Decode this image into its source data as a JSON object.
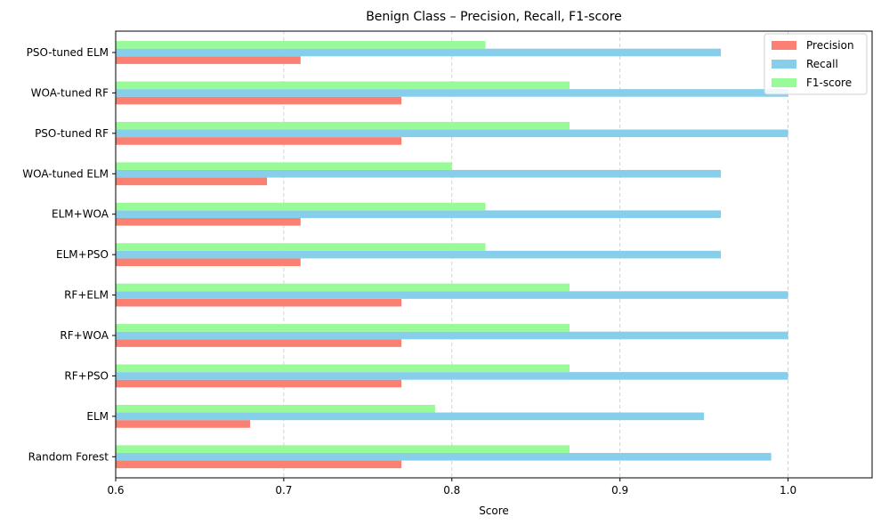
{
  "chart_data": {
    "type": "bar",
    "orientation": "horizontal",
    "title": "Benign Class – Precision, Recall, F1-score",
    "xlabel": "Score",
    "ylabel": "",
    "xlim": [
      0.6,
      1.05
    ],
    "xticks": [
      "0.6",
      "0.7",
      "0.8",
      "0.9",
      "1.0"
    ],
    "grid": "x-dashed",
    "legend_position": "top-right",
    "categories": [
      "Random Forest",
      "ELM",
      "RF+PSO",
      "RF+WOA",
      "RF+ELM",
      "ELM+PSO",
      "ELM+WOA",
      "WOA-tuned ELM",
      "PSO-tuned RF",
      "WOA-tuned RF",
      "PSO-tuned ELM"
    ],
    "series": [
      {
        "name": "Precision",
        "color": "#fa8072",
        "values": [
          0.77,
          0.68,
          0.77,
          0.77,
          0.77,
          0.71,
          0.71,
          0.69,
          0.77,
          0.77,
          0.71
        ]
      },
      {
        "name": "Recall",
        "color": "#87ceeb",
        "values": [
          0.99,
          0.95,
          1.0,
          1.0,
          1.0,
          0.96,
          0.96,
          0.96,
          1.0,
          1.0,
          0.96
        ]
      },
      {
        "name": "F1-score",
        "color": "#98fb98",
        "values": [
          0.87,
          0.79,
          0.87,
          0.87,
          0.87,
          0.82,
          0.82,
          0.8,
          0.87,
          0.87,
          0.82
        ]
      }
    ]
  }
}
